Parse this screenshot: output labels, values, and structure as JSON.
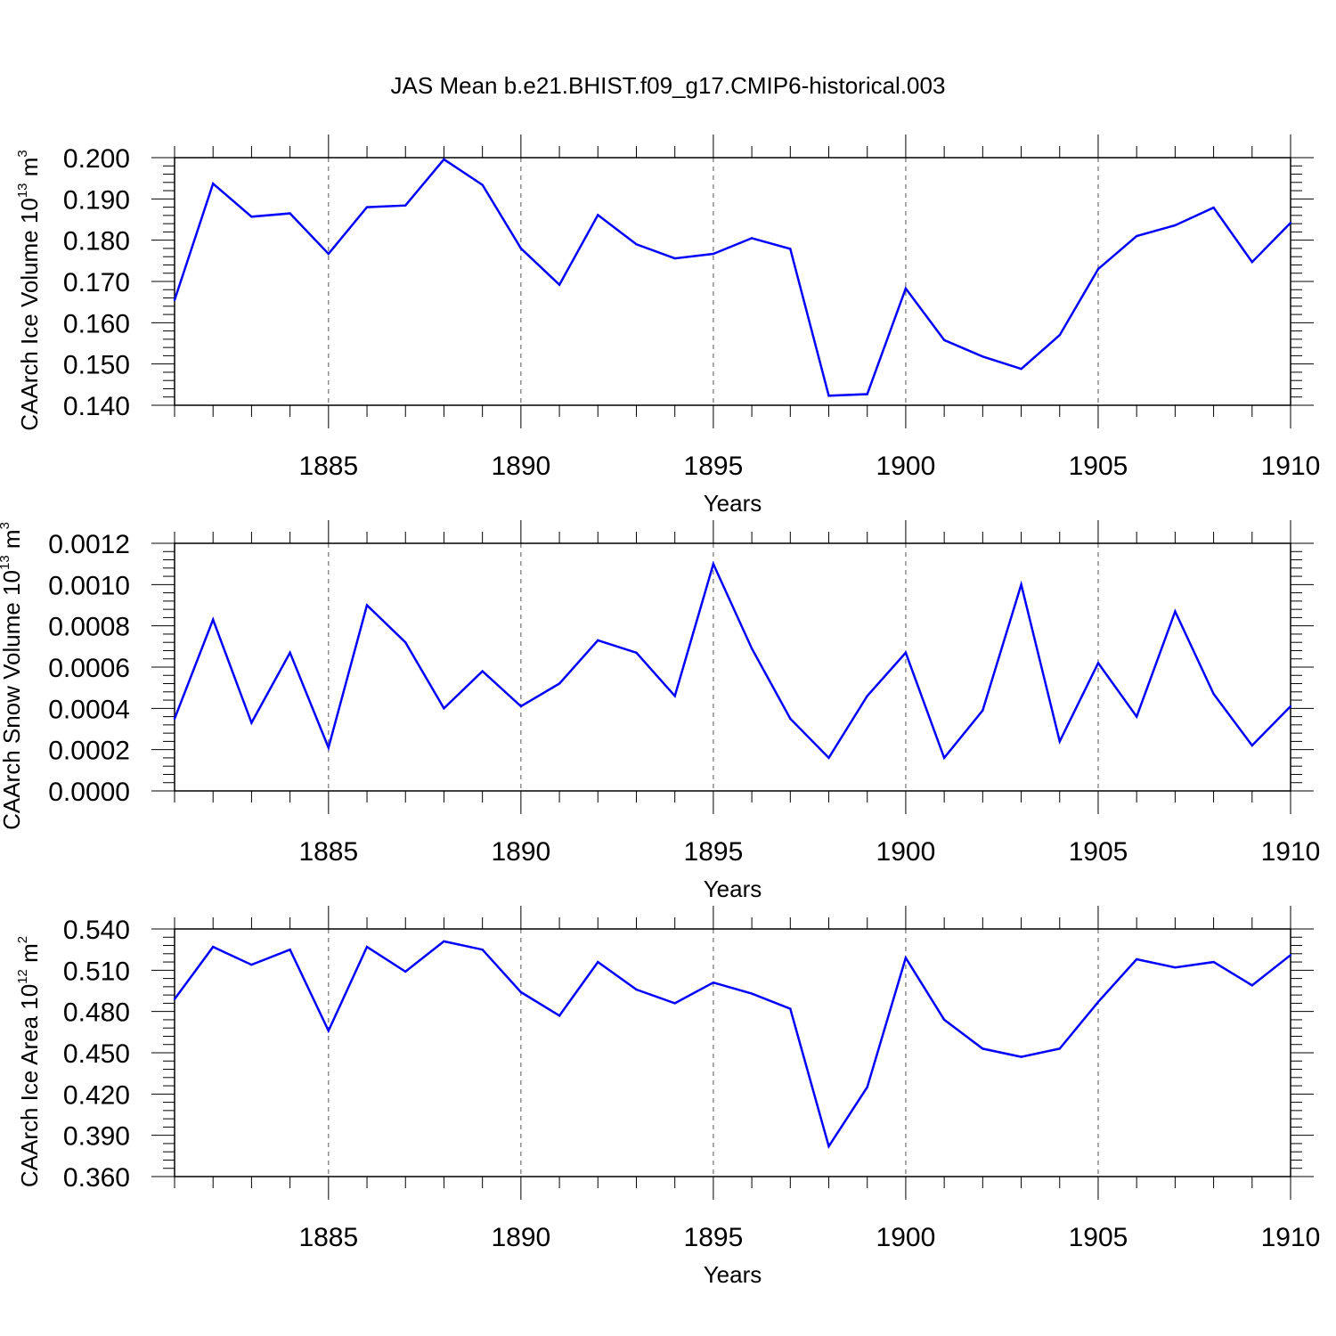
{
  "figure": {
    "title": "JAS Mean b.e21.BHIST.f09_g17.CMIP6-historical.003",
    "line_color": "#0000ff"
  },
  "chart_data": [
    {
      "type": "line",
      "xlabel": "Years",
      "ylabel": {
        "main": "CAArch Ice Volume 10",
        "exp": "13",
        "unit": " m",
        "unit_exp": "3"
      },
      "xlim": [
        1881,
        1910
      ],
      "ylim": [
        0.14,
        0.2
      ],
      "x_ticks": [
        1885,
        1890,
        1895,
        1900,
        1905,
        1910
      ],
      "y_ticks": [
        0.14,
        0.15,
        0.16,
        0.17,
        0.18,
        0.19,
        0.2
      ],
      "y_tick_labels": [
        "0.140",
        "0.150",
        "0.160",
        "0.170",
        "0.180",
        "0.190",
        "0.200"
      ],
      "grid": "vertical dashed at major x ticks",
      "x": [
        1881,
        1882,
        1883,
        1884,
        1885,
        1886,
        1887,
        1888,
        1889,
        1890,
        1891,
        1892,
        1893,
        1894,
        1895,
        1896,
        1897,
        1898,
        1899,
        1900,
        1901,
        1902,
        1903,
        1904,
        1905,
        1906,
        1907,
        1908,
        1909,
        1910
      ],
      "values": [
        0.1655,
        0.1937,
        0.1857,
        0.1865,
        0.1767,
        0.188,
        0.1884,
        0.1996,
        0.1934,
        0.178,
        0.1692,
        0.1861,
        0.179,
        0.1756,
        0.1767,
        0.1805,
        0.1779,
        0.1423,
        0.1427,
        0.1683,
        0.1558,
        0.1518,
        0.1488,
        0.157,
        0.173,
        0.181,
        0.1836,
        0.1879,
        0.1747,
        0.1842
      ]
    },
    {
      "type": "line",
      "xlabel": "Years",
      "ylabel": {
        "main": "CAArch Snow Volume 10",
        "exp": "13",
        "unit": " m",
        "unit_exp": "3"
      },
      "xlim": [
        1881,
        1910
      ],
      "ylim": [
        0,
        0.0012
      ],
      "x_ticks": [
        1885,
        1890,
        1895,
        1900,
        1905,
        1910
      ],
      "y_ticks": [
        0,
        0.0002,
        0.0004,
        0.0006,
        0.0008,
        0.001,
        0.0012
      ],
      "y_tick_labels": [
        "0.0000",
        "0.0002",
        "0.0004",
        "0.0006",
        "0.0008",
        "0.0010",
        "0.0012"
      ],
      "grid": "vertical dashed at major x ticks",
      "x": [
        1881,
        1882,
        1883,
        1884,
        1885,
        1886,
        1887,
        1888,
        1889,
        1890,
        1891,
        1892,
        1893,
        1894,
        1895,
        1896,
        1897,
        1898,
        1899,
        1900,
        1901,
        1902,
        1903,
        1904,
        1905,
        1906,
        1907,
        1908,
        1909,
        1910
      ],
      "values": [
        0.00035,
        0.00083,
        0.00033,
        0.00067,
        0.00021,
        0.0009,
        0.00072,
        0.0004,
        0.00058,
        0.00041,
        0.00052,
        0.00073,
        0.00067,
        0.00046,
        0.0011,
        0.00069,
        0.00035,
        0.00016,
        0.00046,
        0.00067,
        0.00016,
        0.00039,
        0.001,
        0.00024,
        0.00062,
        0.00036,
        0.00087,
        0.00047,
        0.00022,
        0.00041
      ]
    },
    {
      "type": "line",
      "xlabel": "Years",
      "ylabel": {
        "main": "CAArch Ice Area 10",
        "exp": "12",
        "unit": " m",
        "unit_exp": "2"
      },
      "xlim": [
        1881,
        1910
      ],
      "ylim": [
        0.36,
        0.54
      ],
      "x_ticks": [
        1885,
        1890,
        1895,
        1900,
        1905,
        1910
      ],
      "y_ticks": [
        0.36,
        0.39,
        0.42,
        0.45,
        0.48,
        0.51,
        0.54
      ],
      "y_tick_labels": [
        "0.360",
        "0.390",
        "0.420",
        "0.450",
        "0.480",
        "0.510",
        "0.540"
      ],
      "grid": "vertical dashed at major x ticks",
      "x": [
        1881,
        1882,
        1883,
        1884,
        1885,
        1886,
        1887,
        1888,
        1889,
        1890,
        1891,
        1892,
        1893,
        1894,
        1895,
        1896,
        1897,
        1898,
        1899,
        1900,
        1901,
        1902,
        1903,
        1904,
        1905,
        1906,
        1907,
        1908,
        1909,
        1910
      ],
      "values": [
        0.489,
        0.527,
        0.514,
        0.525,
        0.466,
        0.527,
        0.509,
        0.531,
        0.525,
        0.494,
        0.477,
        0.516,
        0.496,
        0.486,
        0.501,
        0.493,
        0.482,
        0.382,
        0.425,
        0.519,
        0.474,
        0.453,
        0.447,
        0.453,
        0.487,
        0.518,
        0.512,
        0.516,
        0.499,
        0.521
      ]
    }
  ]
}
